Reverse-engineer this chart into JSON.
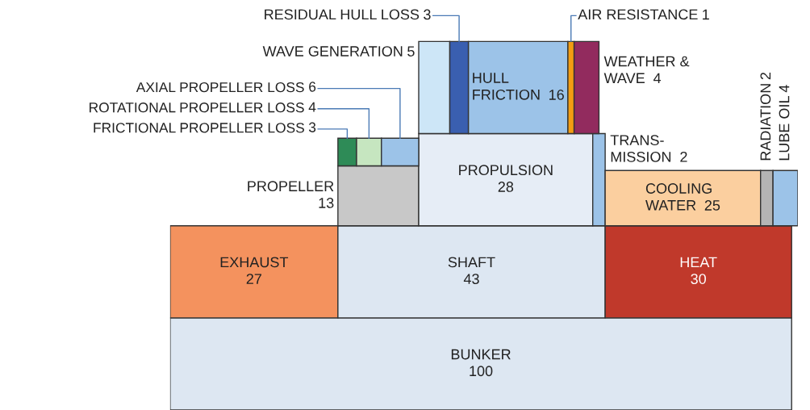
{
  "chart_data": {
    "type": "other",
    "data_labels": true,
    "categories": [
      "BUNKER",
      "EXHAUST",
      "SHAFT",
      "HEAT",
      "PROPELLER",
      "PROPULSION",
      "TRANS-\nMISSION",
      "COOLING\nWATER",
      "RADIATION",
      "LUBE OIL",
      "FRICTIONAL PROPELLER LOSS",
      "ROTATIONAL PROPELLER LOSS",
      "AXIAL PROPELLER LOSS",
      "WAVE GENERATION",
      "RESIDUAL HULL LOSS",
      "HULL\nFRICTION",
      "AIR RESISTANCE",
      "WEATHER &\nWAVE"
    ],
    "values": [
      100,
      27,
      43,
      30,
      13,
      28,
      2,
      25,
      2,
      4,
      3,
      4,
      6,
      5,
      3,
      16,
      1,
      4
    ],
    "colors": [
      "#dde7f2",
      "#f4925e",
      "#dde7f2",
      "#c0392b",
      "#c8c8c8",
      "#e6edf6",
      "#9cc3e8",
      "#fbcf9f",
      "#b4b4b4",
      "#9cc3e8",
      "#2e8b57",
      "#c6e6c0",
      "#9cc3e8",
      "#cde6f7",
      "#3a5fb0",
      "#9cc3e8",
      "#f39c12",
      "#922b5e"
    ]
  }
}
